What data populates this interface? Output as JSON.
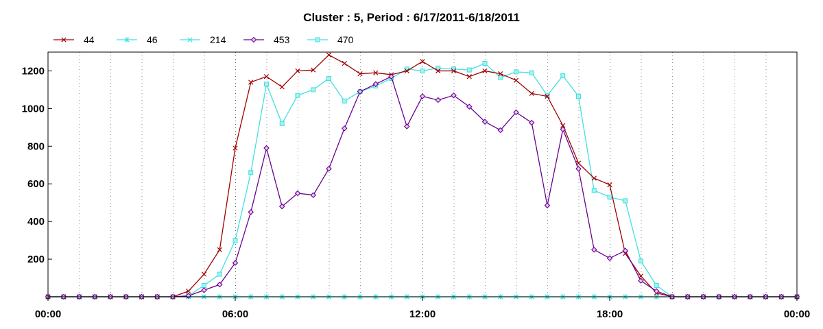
{
  "chart_data": {
    "type": "line",
    "title": "Cluster : 5, Period : 6/17/2011-6/18/2011",
    "xlabel": "",
    "ylabel": "",
    "x_ticks": [
      "00:00",
      "06:00",
      "12:00",
      "18:00",
      "00:00"
    ],
    "y_ticks": [
      200,
      400,
      600,
      800,
      1000,
      1200
    ],
    "xlim_hours": [
      0,
      24
    ],
    "ylim": [
      0,
      1300
    ],
    "grid": "vertical dotted",
    "legend_position": "top-left",
    "x_hours": [
      0,
      0.5,
      1,
      1.5,
      2,
      2.5,
      3,
      3.5,
      4,
      4.5,
      5,
      5.5,
      6,
      6.5,
      7,
      7.5,
      8,
      8.5,
      9,
      9.5,
      10,
      10.5,
      11,
      11.5,
      12,
      12.5,
      13,
      13.5,
      14,
      14.5,
      15,
      15.5,
      16,
      16.5,
      17,
      17.5,
      18,
      18.5,
      19,
      19.5,
      20,
      20.5,
      21,
      21.5,
      22,
      22.5,
      23,
      23.5,
      24
    ],
    "series": [
      {
        "name": "44",
        "color": "#a00000",
        "marker": "x",
        "values": [
          0,
          0,
          0,
          0,
          0,
          0,
          0,
          0,
          0,
          30,
          120,
          250,
          790,
          1140,
          1170,
          1115,
          1200,
          1205,
          1285,
          1240,
          1185,
          1190,
          1180,
          1200,
          1250,
          1200,
          1200,
          1170,
          1200,
          1185,
          1150,
          1080,
          1065,
          910,
          710,
          630,
          595,
          230,
          110,
          20,
          0,
          0,
          0,
          0,
          0,
          0,
          0,
          0,
          0
        ]
      },
      {
        "name": "46",
        "color": "#40e0e0",
        "marker": "asterisk",
        "values": [
          0,
          0,
          0,
          0,
          0,
          0,
          0,
          0,
          0,
          0,
          0,
          0,
          0,
          0,
          0,
          0,
          0,
          0,
          0,
          0,
          0,
          0,
          0,
          0,
          0,
          0,
          0,
          0,
          0,
          0,
          0,
          0,
          0,
          0,
          0,
          0,
          0,
          0,
          0,
          0,
          0,
          0,
          0,
          0,
          0,
          0,
          0,
          0,
          0
        ]
      },
      {
        "name": "214",
        "color": "#40e0e0",
        "marker": "x",
        "values": [
          0,
          0,
          0,
          0,
          0,
          0,
          0,
          0,
          0,
          0,
          0,
          0,
          0,
          0,
          0,
          0,
          0,
          0,
          0,
          0,
          0,
          0,
          0,
          0,
          0,
          0,
          0,
          0,
          0,
          0,
          0,
          0,
          0,
          0,
          0,
          0,
          0,
          0,
          0,
          0,
          0,
          0,
          0,
          0,
          0,
          0,
          0,
          0,
          0
        ]
      },
      {
        "name": "453",
        "color": "#6a0090",
        "marker": "diamond",
        "values": [
          0,
          0,
          0,
          0,
          0,
          0,
          0,
          0,
          0,
          5,
          35,
          65,
          180,
          450,
          790,
          480,
          550,
          540,
          680,
          895,
          1090,
          1130,
          1170,
          905,
          1065,
          1045,
          1070,
          1010,
          930,
          885,
          980,
          925,
          485,
          890,
          680,
          250,
          205,
          245,
          85,
          30,
          0,
          0,
          0,
          0,
          0,
          0,
          0,
          0,
          0
        ]
      },
      {
        "name": "470",
        "color": "#40e0e0",
        "marker": "square",
        "values": [
          0,
          0,
          0,
          0,
          0,
          0,
          0,
          0,
          0,
          5,
          60,
          120,
          300,
          660,
          1130,
          920,
          1070,
          1100,
          1160,
          1040,
          1090,
          1120,
          1160,
          1210,
          1200,
          1215,
          1210,
          1205,
          1240,
          1165,
          1195,
          1190,
          1070,
          1175,
          1065,
          565,
          530,
          510,
          190,
          60,
          0,
          0,
          0,
          0,
          0,
          0,
          0,
          0,
          0
        ]
      }
    ]
  }
}
